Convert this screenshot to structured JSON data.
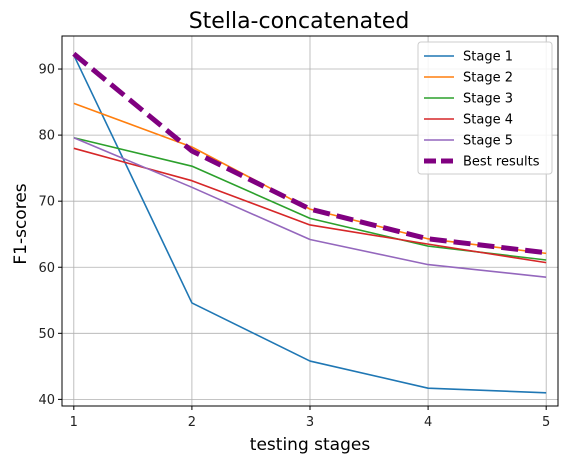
{
  "chart_data": {
    "type": "line",
    "title": "Stella-concatenated",
    "xlabel": "testing stages",
    "ylabel": "F1-scores",
    "x": [
      1,
      2,
      3,
      4,
      5
    ],
    "xlim": [
      0.9,
      5.1
    ],
    "ylim": [
      39,
      95
    ],
    "xticks": [
      1,
      2,
      3,
      4,
      5
    ],
    "yticks": [
      40,
      50,
      60,
      70,
      80,
      90
    ],
    "grid": true,
    "legend_position": "top-right",
    "series": [
      {
        "name": "Stage 1",
        "values": [
          92.1,
          54.6,
          45.8,
          41.7,
          41.0
        ],
        "color": "#1f77b4",
        "style": "solid",
        "width": 1.6
      },
      {
        "name": "Stage 2",
        "values": [
          84.8,
          78.2,
          68.8,
          64.3,
          62.1
        ],
        "color": "#ff7f0e",
        "style": "solid",
        "width": 1.6
      },
      {
        "name": "Stage 3",
        "values": [
          79.6,
          75.3,
          67.4,
          63.2,
          61.1
        ],
        "color": "#2ca02c",
        "style": "solid",
        "width": 1.6
      },
      {
        "name": "Stage 4",
        "values": [
          78.0,
          73.1,
          66.4,
          63.5,
          60.7
        ],
        "color": "#d62728",
        "style": "solid",
        "width": 1.6
      },
      {
        "name": "Stage 5",
        "values": [
          79.6,
          72.1,
          64.2,
          60.4,
          58.5
        ],
        "color": "#9467bd",
        "style": "solid",
        "width": 1.6
      },
      {
        "name": "Best results",
        "values": [
          92.3,
          77.6,
          68.8,
          64.3,
          62.2
        ],
        "color": "#800080",
        "style": "dashed",
        "width": 5
      }
    ]
  }
}
